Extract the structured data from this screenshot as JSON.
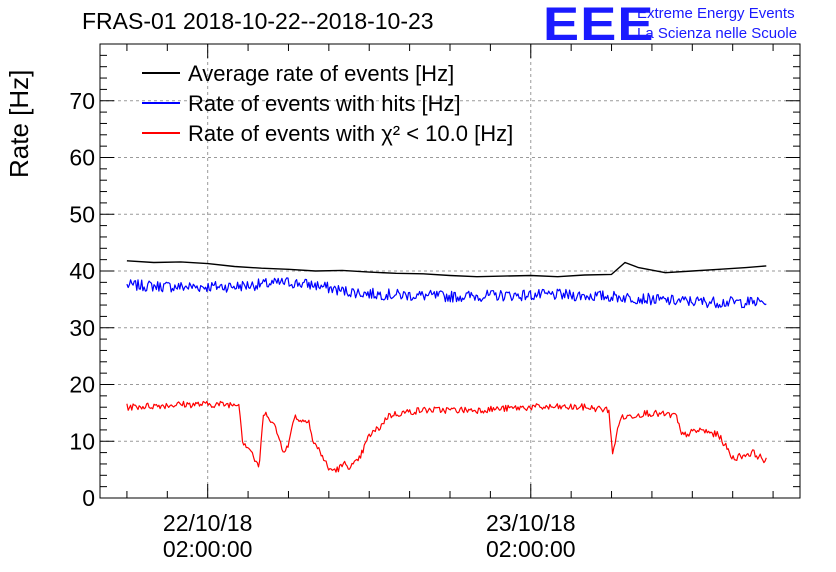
{
  "title": "FRAS-01 2018-10-22--2018-10-23",
  "logo": {
    "mark": "EEE",
    "line1": "Extreme Energy Events",
    "line2": "La Scienza nelle Scuole",
    "color": "#1a1aff"
  },
  "chart_data": {
    "type": "line",
    "ylabel": "Rate [Hz]",
    "xlabel": "",
    "ylim": [
      0,
      80
    ],
    "yticks": [
      0,
      10,
      20,
      30,
      40,
      50,
      60,
      70
    ],
    "xticks": [
      {
        "line1": "22/10/18",
        "line2": "02:00:00"
      },
      {
        "line1": "23/10/18",
        "line2": "02:00:00"
      }
    ],
    "grid": true,
    "legend_position": "top-left",
    "x_unit": "hours since 2018-10-22 00:00",
    "series": [
      {
        "name": "Average rate of events [Hz]",
        "color": "#000000",
        "x": [
          -4.0,
          -2.0,
          0.0,
          2.0,
          4.0,
          6.0,
          8.0,
          10.0,
          12.0,
          14.0,
          16.0,
          18.0,
          20.0,
          22.0,
          24.0,
          26.0,
          28.0,
          30.0,
          32.0,
          33.0,
          34.0,
          36.0,
          38.0,
          40.0,
          42.0,
          43.5
        ],
        "values": [
          41.8,
          41.5,
          41.6,
          41.3,
          40.8,
          40.5,
          40.3,
          40.0,
          40.1,
          39.8,
          39.6,
          39.5,
          39.2,
          39.0,
          39.1,
          39.2,
          39.0,
          39.3,
          39.4,
          41.5,
          40.6,
          39.7,
          40.0,
          40.3,
          40.6,
          40.9
        ]
      },
      {
        "name": "Rate of events with hits [Hz]",
        "color": "#0000ff",
        "noise": 1.0,
        "x": [
          -4.0,
          0.0,
          4.0,
          8.0,
          10.0,
          12.0,
          14.0,
          16.0,
          20.0,
          24.0,
          28.0,
          32.0,
          34.0,
          36.0,
          40.0,
          43.5
        ],
        "values": [
          37.5,
          37.2,
          37.3,
          38.0,
          37.5,
          36.5,
          36.0,
          35.8,
          35.5,
          35.7,
          35.8,
          35.5,
          35.2,
          34.8,
          34.5,
          34.5
        ]
      },
      {
        "name": "Rate of events with χ² < 10.0 [Hz]",
        "color": "#ff0000",
        "noise": 0.6,
        "x": [
          -4.0,
          0.0,
          4.0,
          4.3,
          4.6,
          5.2,
          5.8,
          6.1,
          6.4,
          7.0,
          7.6,
          8.0,
          8.4,
          9.0,
          9.5,
          9.8,
          10.4,
          11.0,
          11.6,
          12.2,
          12.6,
          13.2,
          14.0,
          14.8,
          15.4,
          16.4,
          18.0,
          22.0,
          26.0,
          30.0,
          31.8,
          32.1,
          32.6,
          33.5,
          34.6,
          36.8,
          37.2,
          38.6,
          40.0,
          41.0,
          42.5,
          43.5
        ],
        "values": [
          16.0,
          16.5,
          16.5,
          17.0,
          10.0,
          8.5,
          5.0,
          14.0,
          15.0,
          12.5,
          8.5,
          9.0,
          14.5,
          13.5,
          14.0,
          10.0,
          8.0,
          5.0,
          5.0,
          6.0,
          5.5,
          6.5,
          11.0,
          12.5,
          14.5,
          15.0,
          15.5,
          15.5,
          16.0,
          16.0,
          15.5,
          7.5,
          14.0,
          14.5,
          15.0,
          14.5,
          11.0,
          12.0,
          11.0,
          7.0,
          8.0,
          6.5
        ]
      }
    ]
  }
}
